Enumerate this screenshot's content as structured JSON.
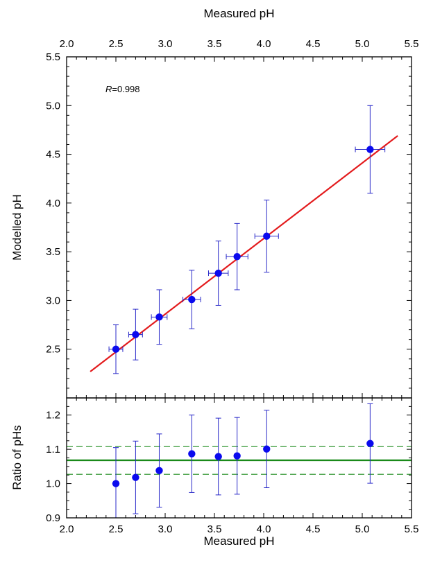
{
  "chart_data": [
    {
      "type": "scatter",
      "panel": "top",
      "title": "",
      "top_xlabel": "Measured pH",
      "xlabel": "",
      "ylabel": "Modelled pH",
      "xlim": [
        2.0,
        5.5
      ],
      "ylim": [
        2.0,
        5.5
      ],
      "xticks": [
        2.0,
        2.5,
        3.0,
        3.5,
        4.0,
        4.5,
        5.0,
        5.5
      ],
      "xtick_labels": [
        "2.0",
        "2.5",
        "3.0",
        "3.5",
        "4.0",
        "4.5",
        "5.0",
        "5.5"
      ],
      "yticks": [
        2.5,
        3.0,
        3.5,
        4.0,
        4.5,
        5.0,
        5.5
      ],
      "ytick_labels": [
        "2.5",
        "3.0",
        "3.5",
        "4.0",
        "4.5",
        "5.0",
        "5.5"
      ],
      "annotation": {
        "italic": "R",
        "rest": "=0.998"
      },
      "points": [
        {
          "x": 2.5,
          "y": 2.5,
          "xerr": 0.07,
          "yerr": 0.25
        },
        {
          "x": 2.7,
          "y": 2.65,
          "xerr": 0.07,
          "yerr": 0.26
        },
        {
          "x": 2.94,
          "y": 2.83,
          "xerr": 0.08,
          "yerr": 0.28
        },
        {
          "x": 3.27,
          "y": 3.01,
          "xerr": 0.09,
          "yerr": 0.3
        },
        {
          "x": 3.54,
          "y": 3.28,
          "xerr": 0.1,
          "yerr": 0.33
        },
        {
          "x": 3.73,
          "y": 3.45,
          "xerr": 0.11,
          "yerr": 0.34
        },
        {
          "x": 4.03,
          "y": 3.66,
          "xerr": 0.12,
          "yerr": 0.37
        },
        {
          "x": 5.08,
          "y": 4.55,
          "xerr": 0.15,
          "yerr": 0.45
        }
      ],
      "fit_line": {
        "x": [
          2.24,
          5.36
        ],
        "y": [
          2.27,
          4.69
        ],
        "color": "#e31a1c"
      },
      "point_color": "#0a0aee",
      "errorbar_color": "#2828c8"
    },
    {
      "type": "scatter",
      "panel": "bottom",
      "title": "",
      "xlabel": "Measured pH",
      "ylabel": "Ratio of pHs",
      "xlim": [
        2.0,
        5.5
      ],
      "ylim": [
        0.9,
        1.25
      ],
      "xticks": [
        2.0,
        2.5,
        3.0,
        3.5,
        4.0,
        4.5,
        5.0,
        5.5
      ],
      "xtick_labels": [
        "2.0",
        "2.5",
        "3.0",
        "3.5",
        "4.0",
        "4.5",
        "5.0",
        "5.5"
      ],
      "yticks": [
        0.9,
        1.0,
        1.1,
        1.2
      ],
      "ytick_labels": [
        "0.9",
        "1.0",
        "1.1",
        "1.2"
      ],
      "points": [
        {
          "x": 2.5,
          "y": 1.0,
          "yerr": 0.105
        },
        {
          "x": 2.7,
          "y": 1.018,
          "yerr": 0.106
        },
        {
          "x": 2.94,
          "y": 1.038,
          "yerr": 0.107
        },
        {
          "x": 3.27,
          "y": 1.087,
          "yerr": 0.113
        },
        {
          "x": 3.54,
          "y": 1.079,
          "yerr": 0.112
        },
        {
          "x": 3.73,
          "y": 1.081,
          "yerr": 0.112
        },
        {
          "x": 4.03,
          "y": 1.101,
          "yerr": 0.113
        },
        {
          "x": 5.08,
          "y": 1.117,
          "yerr": 0.116
        }
      ],
      "mean_line": {
        "y": 1.068,
        "color": "#1a8a1a"
      },
      "bound_lines": {
        "y": [
          1.108,
          1.027
        ],
        "color": "#1a8a1a"
      },
      "point_color": "#0a0aee",
      "errorbar_color": "#2828c8"
    }
  ]
}
